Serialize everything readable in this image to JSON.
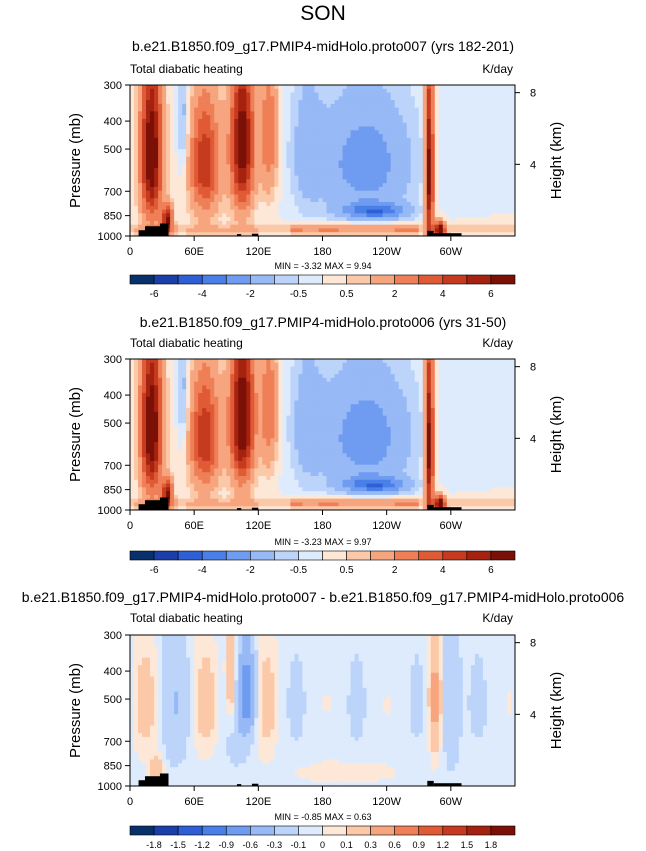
{
  "page_title": "SON",
  "chart_data": [
    {
      "type": "heatmap",
      "title": "b.e21.B1850.f09_g17.PMIP4-midHolo.proto007 (yrs 182-201)",
      "left_label": "Total diabatic heating",
      "right_label": "K/day",
      "ylabel": "Pressure (mb)",
      "ylabel_right": "Height (km)",
      "y_ticks": [
        "300",
        "400",
        "500",
        "700",
        "850",
        "1000"
      ],
      "y_tick_values": [
        300,
        400,
        500,
        700,
        850,
        1000
      ],
      "height_ticks": [
        "8",
        "4"
      ],
      "height_tick_values": [
        8,
        4
      ],
      "x_ticks": [
        "0",
        "60E",
        "120E",
        "180",
        "120W",
        "60W"
      ],
      "x_tick_values": [
        0,
        60,
        120,
        180,
        240,
        300
      ],
      "xlim": [
        0,
        360
      ],
      "stats": "MIN = -3.32  MAX = 9.94",
      "colorbar_labels": [
        "-6",
        "-4",
        "-2",
        "-0.5",
        "0.5",
        "2",
        "4",
        "6"
      ],
      "colorbar_levels": [
        -7,
        -6,
        -5,
        -4,
        -3,
        -2,
        -1,
        -0.5,
        0,
        0.5,
        1,
        2,
        3,
        4,
        5,
        6,
        7,
        8
      ]
    },
    {
      "type": "heatmap",
      "title": "b.e21.B1850.f09_g17.PMIP4-midHolo.proto006 (yrs 31-50)",
      "left_label": "Total diabatic heating",
      "right_label": "K/day",
      "ylabel": "Pressure (mb)",
      "ylabel_right": "Height (km)",
      "y_ticks": [
        "300",
        "400",
        "500",
        "700",
        "850",
        "1000"
      ],
      "y_tick_values": [
        300,
        400,
        500,
        700,
        850,
        1000
      ],
      "height_ticks": [
        "8",
        "4"
      ],
      "height_tick_values": [
        8,
        4
      ],
      "x_ticks": [
        "0",
        "60E",
        "120E",
        "180",
        "120W",
        "60W"
      ],
      "x_tick_values": [
        0,
        60,
        120,
        180,
        240,
        300
      ],
      "xlim": [
        0,
        360
      ],
      "stats": "MIN = -3.23  MAX = 9.97",
      "colorbar_labels": [
        "-6",
        "-4",
        "-2",
        "-0.5",
        "0.5",
        "2",
        "4",
        "6"
      ],
      "colorbar_levels": [
        -7,
        -6,
        -5,
        -4,
        -3,
        -2,
        -1,
        -0.5,
        0,
        0.5,
        1,
        2,
        3,
        4,
        5,
        6,
        7,
        8
      ]
    },
    {
      "type": "heatmap",
      "title": "b.e21.B1850.f09_g17.PMIP4-midHolo.proto007 - b.e21.B1850.f09_g17.PMIP4-midHolo.proto006",
      "left_label": "Total diabatic heating",
      "right_label": "K/day",
      "ylabel": "Pressure (mb)",
      "ylabel_right": "Height (km)",
      "y_ticks": [
        "300",
        "400",
        "500",
        "700",
        "850",
        "1000"
      ],
      "y_tick_values": [
        300,
        400,
        500,
        700,
        850,
        1000
      ],
      "height_ticks": [
        "8",
        "4"
      ],
      "height_tick_values": [
        8,
        4
      ],
      "x_ticks": [
        "0",
        "60E",
        "120E",
        "180",
        "120W",
        "60W"
      ],
      "x_tick_values": [
        0,
        60,
        120,
        180,
        240,
        300
      ],
      "xlim": [
        0,
        360
      ],
      "stats": "MIN = -0.85  MAX = 0.63",
      "colorbar_labels": [
        "-1.8",
        "-1.5",
        "-1.2",
        "-0.9",
        "-0.6",
        "-0.3",
        "-0.1",
        "0",
        "0.1",
        "0.3",
        "0.6",
        "0.9",
        "1.2",
        "1.5",
        "1.8"
      ],
      "colorbar_levels": [
        -2.1,
        -1.8,
        -1.5,
        -1.2,
        -0.9,
        -0.6,
        -0.3,
        -0.1,
        0,
        0.1,
        0.3,
        0.6,
        0.9,
        1.2,
        1.5,
        1.8,
        2.1
      ]
    }
  ],
  "palette": [
    "#08306b",
    "#1a3fa8",
    "#2f5fd6",
    "#4a7fe8",
    "#6f9cf0",
    "#97b9f6",
    "#bcd4fa",
    "#deebfd",
    "#fde8d8",
    "#fbc8a8",
    "#f6a57e",
    "#ef7f57",
    "#e05a36",
    "#c63a1f",
    "#a4220f",
    "#7a1006"
  ]
}
